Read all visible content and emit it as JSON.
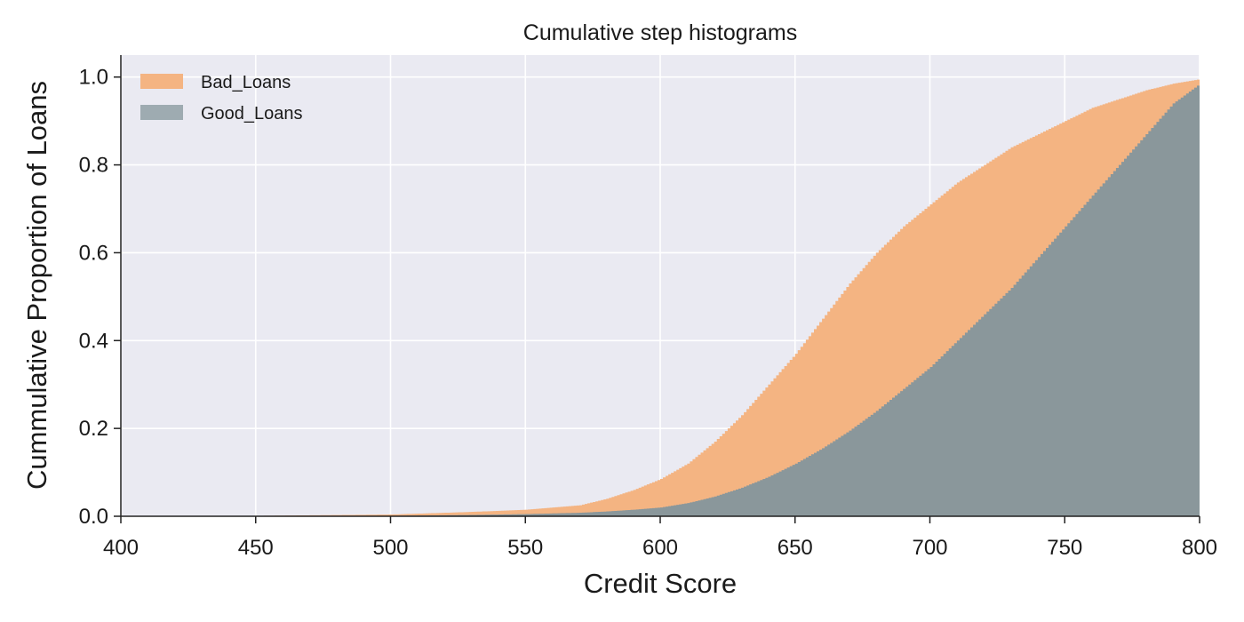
{
  "chart_data": {
    "type": "area",
    "title": "Cumulative step histograms",
    "xlabel": "Credit Score",
    "ylabel": "Cummulative Proportion of Loans",
    "xlim": [
      400,
      800
    ],
    "ylim": [
      0,
      1.05
    ],
    "xticks": [
      "400",
      "450",
      "500",
      "550",
      "600",
      "650",
      "700",
      "750",
      "800"
    ],
    "yticks": [
      "0.0",
      "0.2",
      "0.4",
      "0.6",
      "0.8",
      "1.0"
    ],
    "grid": true,
    "legend_position": "top-left",
    "step": true,
    "x": [
      400,
      450,
      500,
      530,
      550,
      570,
      580,
      590,
      600,
      610,
      620,
      630,
      640,
      650,
      660,
      670,
      680,
      690,
      700,
      710,
      720,
      730,
      740,
      750,
      760,
      770,
      780,
      790,
      800
    ],
    "series": [
      {
        "name": "Bad_Loans",
        "color": "#f4b482",
        "values": [
          0,
          0.001,
          0.004,
          0.01,
          0.015,
          0.025,
          0.04,
          0.06,
          0.085,
          0.12,
          0.17,
          0.23,
          0.3,
          0.37,
          0.45,
          0.53,
          0.6,
          0.66,
          0.71,
          0.76,
          0.8,
          0.84,
          0.87,
          0.9,
          0.93,
          0.95,
          0.97,
          0.985,
          0.995
        ]
      },
      {
        "name": "Good_Loans",
        "color": "#8a979b",
        "legend_color": "#9eabb1",
        "values": [
          0,
          0,
          0.001,
          0.003,
          0.005,
          0.008,
          0.011,
          0.015,
          0.02,
          0.03,
          0.045,
          0.065,
          0.09,
          0.12,
          0.155,
          0.195,
          0.24,
          0.29,
          0.34,
          0.4,
          0.46,
          0.52,
          0.59,
          0.66,
          0.73,
          0.8,
          0.87,
          0.94,
          0.985
        ]
      }
    ]
  }
}
